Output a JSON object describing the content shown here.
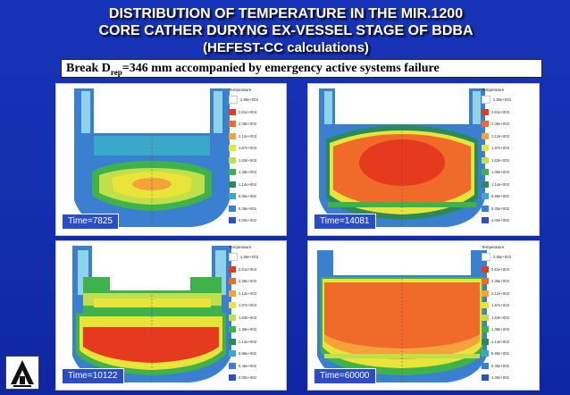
{
  "title_lines": [
    "DISTRIBUTION OF TEMPERATURE IN THE MIR.1200",
    "CORE CATHER DURYNG EX-VESSEL STAGE OF BDBA",
    "(HEFEST-CC calculations)"
  ],
  "break_caption": {
    "pre": "Break D",
    "sub": "rep",
    "post": "=346 mm accompanied by emergency active systems failure"
  },
  "legend": {
    "title": "Temperature",
    "levels": [
      "2.85e+003",
      "2.61e+003",
      "2.36e+003",
      "2.12e+003",
      "1.87e+003",
      "1.63e+003",
      "1.38e+003",
      "1.14e+003",
      "8.96e+002",
      "6.45e+002",
      "4.00e+002"
    ],
    "colors": [
      "#ffffff",
      "#e53a1e",
      "#f06a2a",
      "#f5a23a",
      "#e9e43a",
      "#bfe04a",
      "#3fb34a",
      "#2a8a5a",
      "#3aa8c8",
      "#3a7fd0",
      "#2a4fd0"
    ]
  },
  "panels": [
    {
      "time": "Time=7825"
    },
    {
      "time": "Time=14081"
    },
    {
      "time": "Time=10122"
    },
    {
      "time": "Time=60000"
    }
  ]
}
